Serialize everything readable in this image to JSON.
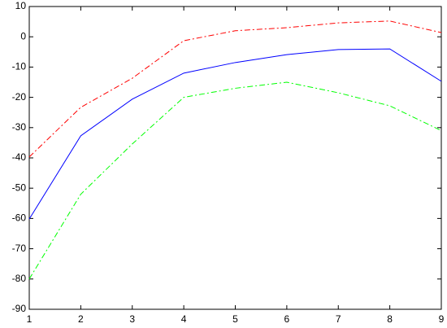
{
  "chart_data": {
    "type": "line",
    "x": [
      1,
      2,
      3,
      4,
      5,
      6,
      7,
      8,
      9
    ],
    "series": [
      {
        "color": "#ff0000",
        "linestyle": "dashdot",
        "values": [
          -39.7,
          -23.3,
          -13.7,
          -1.3,
          2,
          3,
          4.6,
          5.2,
          1.4
        ]
      },
      {
        "color": "#0000ff",
        "linestyle": "solid",
        "values": [
          -60.2,
          -32.7,
          -20.6,
          -12,
          -8.5,
          -5.9,
          -4.2,
          -4,
          -14.7
        ]
      },
      {
        "color": "#00ff00",
        "linestyle": "dashdot",
        "values": [
          -80,
          -52,
          -35.4,
          -20,
          -17,
          -15,
          -18.5,
          -22.8,
          -31
        ]
      }
    ],
    "xlim": [
      1,
      9
    ],
    "xticks": [
      1,
      2,
      3,
      4,
      5,
      6,
      7,
      8,
      9
    ],
    "ylim": [
      -90,
      10
    ],
    "yticks": [
      -90,
      -80,
      -70,
      -60,
      -50,
      -40,
      -30,
      -20,
      -10,
      0,
      10
    ],
    "grid": false
  }
}
